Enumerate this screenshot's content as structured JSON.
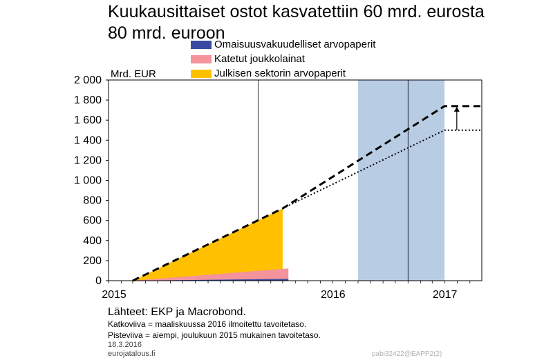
{
  "title": {
    "line1": "Kuukausittaiset ostot kasvatettiin 60 mrd. eurosta",
    "line2": "80 mrd. euroon"
  },
  "legend": [
    {
      "label": "Omaisuusvakuudelliset arvopaperit",
      "color": "#3b4aa0"
    },
    {
      "label": "Katetut joukkolainat",
      "color": "#f4939b"
    },
    {
      "label": "Julkisen sektorin arvopaperit",
      "color": "#ffc000"
    }
  ],
  "unit_label": "Mrd. EUR",
  "chart_data": {
    "type": "area",
    "ylim": [
      0,
      2000
    ],
    "yticks": [
      0,
      200,
      400,
      600,
      800,
      1000,
      1200,
      1400,
      1600,
      1800,
      2000
    ],
    "ytick_labels": [
      "0",
      "200",
      "400",
      "600",
      "800",
      "1 000",
      "1 200",
      "1 400",
      "1 600",
      "1 800",
      "2 000"
    ],
    "xlim": [
      "2015-01-01",
      "2017-06-30"
    ],
    "xtick_labels": [
      "2015",
      "2016",
      "2017"
    ],
    "grid": true,
    "shaded_region": {
      "start": "2016-09-01",
      "end": "2017-03-31",
      "color": "#b8cce4"
    },
    "series": [
      {
        "name": "Omaisuusvakuudelliset arvopaperit",
        "kind": "area",
        "color": "#3b4aa0",
        "points": [
          [
            "2015-03-01",
            0
          ],
          [
            "2016-03-15",
            18
          ]
        ]
      },
      {
        "name": "Katetut joukkolainat",
        "kind": "area",
        "color": "#f4939b",
        "points": [
          [
            "2015-03-01",
            0
          ],
          [
            "2016-03-15",
            122
          ]
        ]
      },
      {
        "name": "Julkisen sektorin arvopaperit",
        "kind": "area",
        "color": "#ffc000",
        "points": [
          [
            "2015-03-01",
            0
          ],
          [
            "2016-03-01",
            720
          ]
        ]
      },
      {
        "kind": "dashed",
        "color": "#000000",
        "points": [
          [
            "2015-03-01",
            0
          ],
          [
            "2016-03-01",
            720
          ],
          [
            "2017-03-31",
            1740
          ],
          [
            "2017-06-30",
            1740
          ]
        ]
      },
      {
        "kind": "dotted",
        "color": "#000000",
        "points": [
          [
            "2016-03-01",
            720
          ],
          [
            "2017-03-31",
            1500
          ],
          [
            "2017-06-30",
            1500
          ]
        ]
      }
    ],
    "arrow": {
      "x": "2017-04-30",
      "from": 1500,
      "to": 1740
    }
  },
  "footer": {
    "sources": "Lähteet: EKP ja Macrobond.",
    "note1": "Katkoviiva = maaliskuussa 2016 ilmoitettu tavoitetaso.",
    "note2": "Pisteviiva = aiempi, joulukuun 2015 mukainen tavoitetaso.",
    "date": "18.3.2016",
    "site": "eurojatalous.fi",
    "code": "pabi32422@EAPP2(2)"
  }
}
